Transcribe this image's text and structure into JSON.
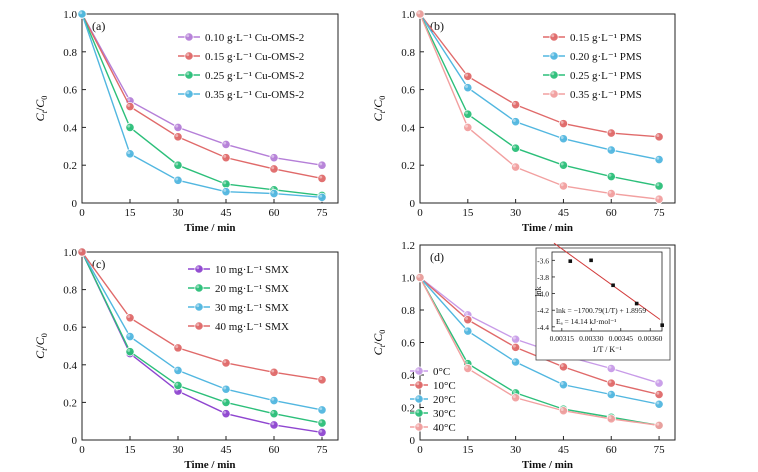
{
  "chart_data": [
    {
      "type": "line",
      "panel_label": "(a)",
      "x": [
        0,
        15,
        30,
        45,
        60,
        75
      ],
      "xlabel": "Time / min",
      "ylabel": "Ct/C0",
      "xlim": [
        0,
        80
      ],
      "ylim": [
        0,
        1.0
      ],
      "xticks": [
        "0",
        "15",
        "30",
        "45",
        "60",
        "75"
      ],
      "yticks": [
        "0",
        "0.2",
        "0.4",
        "0.6",
        "0.8",
        "1.0"
      ],
      "legend_position": "top-right",
      "series": [
        {
          "name": "0.10 g·L⁻¹ Cu-OMS-2",
          "color": "#b57fd8",
          "values": [
            1.0,
            0.54,
            0.4,
            0.31,
            0.24,
            0.2
          ]
        },
        {
          "name": "0.15 g·L⁻¹ Cu-OMS-2",
          "color": "#e06a6a",
          "values": [
            1.0,
            0.51,
            0.35,
            0.24,
            0.18,
            0.13
          ]
        },
        {
          "name": "0.25 g·L⁻¹ Cu-OMS-2",
          "color": "#2cbf7a",
          "values": [
            1.0,
            0.4,
            0.2,
            0.1,
            0.07,
            0.04
          ]
        },
        {
          "name": "0.35 g·L⁻¹ Cu-OMS-2",
          "color": "#52b7e0",
          "values": [
            1.0,
            0.26,
            0.12,
            0.06,
            0.05,
            0.03
          ]
        }
      ]
    },
    {
      "type": "line",
      "panel_label": "(b)",
      "x": [
        0,
        15,
        30,
        45,
        60,
        75
      ],
      "xlabel": "Time / min",
      "ylabel": "Ct/C0",
      "xlim": [
        0,
        80
      ],
      "ylim": [
        0,
        1.0
      ],
      "xticks": [
        "0",
        "15",
        "30",
        "45",
        "60",
        "75"
      ],
      "yticks": [
        "0",
        "0.2",
        "0.4",
        "0.6",
        "0.8",
        "1.0"
      ],
      "legend_position": "top-right",
      "series": [
        {
          "name": "0.15 g·L⁻¹ PMS",
          "color": "#e06a6a",
          "values": [
            1.0,
            0.67,
            0.52,
            0.42,
            0.37,
            0.35
          ]
        },
        {
          "name": "0.20 g·L⁻¹ PMS",
          "color": "#52b7e0",
          "values": [
            1.0,
            0.61,
            0.43,
            0.34,
            0.28,
            0.23
          ]
        },
        {
          "name": "0.25 g·L⁻¹ PMS",
          "color": "#2cbf7a",
          "values": [
            1.0,
            0.47,
            0.29,
            0.2,
            0.14,
            0.09
          ]
        },
        {
          "name": "0.35 g·L⁻¹ PMS",
          "color": "#f2a0a0",
          "values": [
            1.0,
            0.4,
            0.19,
            0.09,
            0.05,
            0.02
          ]
        }
      ]
    },
    {
      "type": "line",
      "panel_label": "(c)",
      "x": [
        0,
        15,
        30,
        45,
        60,
        75
      ],
      "xlabel": "Time / min",
      "ylabel": "Ct/C0",
      "xlim": [
        0,
        80
      ],
      "ylim": [
        0,
        1.0
      ],
      "xticks": [
        "0",
        "15",
        "30",
        "45",
        "60",
        "75"
      ],
      "yticks": [
        "0",
        "0.2",
        "0.4",
        "0.6",
        "0.8",
        "1.0"
      ],
      "legend_position": "top-right",
      "series": [
        {
          "name": "10 mg·L⁻¹ SMX",
          "color": "#8f46d0",
          "values": [
            1.0,
            0.46,
            0.26,
            0.14,
            0.08,
            0.04
          ]
        },
        {
          "name": "20 mg·L⁻¹ SMX",
          "color": "#2cbf7a",
          "values": [
            1.0,
            0.47,
            0.29,
            0.2,
            0.14,
            0.09
          ]
        },
        {
          "name": "30 mg·L⁻¹ SMX",
          "color": "#52b7e0",
          "values": [
            1.0,
            0.55,
            0.37,
            0.27,
            0.21,
            0.16
          ]
        },
        {
          "name": "40 mg·L⁻¹ SMX",
          "color": "#e06a6a",
          "values": [
            1.0,
            0.65,
            0.49,
            0.41,
            0.36,
            0.32
          ]
        }
      ]
    },
    {
      "type": "line",
      "panel_label": "(d)",
      "x": [
        0,
        15,
        30,
        45,
        60,
        75
      ],
      "xlabel": "Time / min",
      "ylabel": "Ct/C0",
      "xlim": [
        0,
        80
      ],
      "ylim": [
        0,
        1.2
      ],
      "xticks": [
        "0",
        "15",
        "30",
        "45",
        "60",
        "75"
      ],
      "yticks": [
        "0",
        "0.2",
        "0.4",
        "0.6",
        "0.8",
        "1.0",
        "1.2"
      ],
      "legend_position": "bottom-left",
      "series": [
        {
          "name": "0°C",
          "color": "#c89be8",
          "values": [
            1.0,
            0.77,
            0.62,
            0.52,
            0.44,
            0.35
          ]
        },
        {
          "name": "10°C",
          "color": "#e06a6a",
          "values": [
            1.0,
            0.74,
            0.57,
            0.45,
            0.35,
            0.28
          ]
        },
        {
          "name": "20°C",
          "color": "#52b7e0",
          "values": [
            1.0,
            0.67,
            0.48,
            0.34,
            0.28,
            0.22
          ]
        },
        {
          "name": "30°C",
          "color": "#2cbf7a",
          "values": [
            1.0,
            0.47,
            0.29,
            0.19,
            0.14,
            0.09
          ]
        },
        {
          "name": "40°C",
          "color": "#f2a0a0",
          "values": [
            1.0,
            0.44,
            0.26,
            0.18,
            0.13,
            0.09
          ]
        }
      ],
      "inset": {
        "type": "scatter",
        "xlabel": "1/T / K⁻¹",
        "ylabel": "lnk",
        "xlim": [
          0.0031,
          0.00366
        ],
        "ylim": [
          -4.45,
          -3.5
        ],
        "xticks": [
          "0.00315",
          "0.00330",
          "0.00345",
          "0.00360"
        ],
        "yticks": [
          "-3.6",
          "-3.8",
          "-4.0",
          "-4.2",
          "-4.4"
        ],
        "points": {
          "x": [
            0.003193,
            0.003299,
            0.003411,
            0.003531,
            0.003661
          ],
          "y": [
            -3.61,
            -3.6,
            -3.9,
            -4.12,
            -4.38
          ]
        },
        "fit": {
          "slope": -1700.79,
          "intercept": 1.8959
        },
        "equation": "lnk = −1700.79(1/T) + 1.8959",
        "ea_text": "Eₐ = 14.14 kJ·mol⁻¹"
      }
    }
  ]
}
